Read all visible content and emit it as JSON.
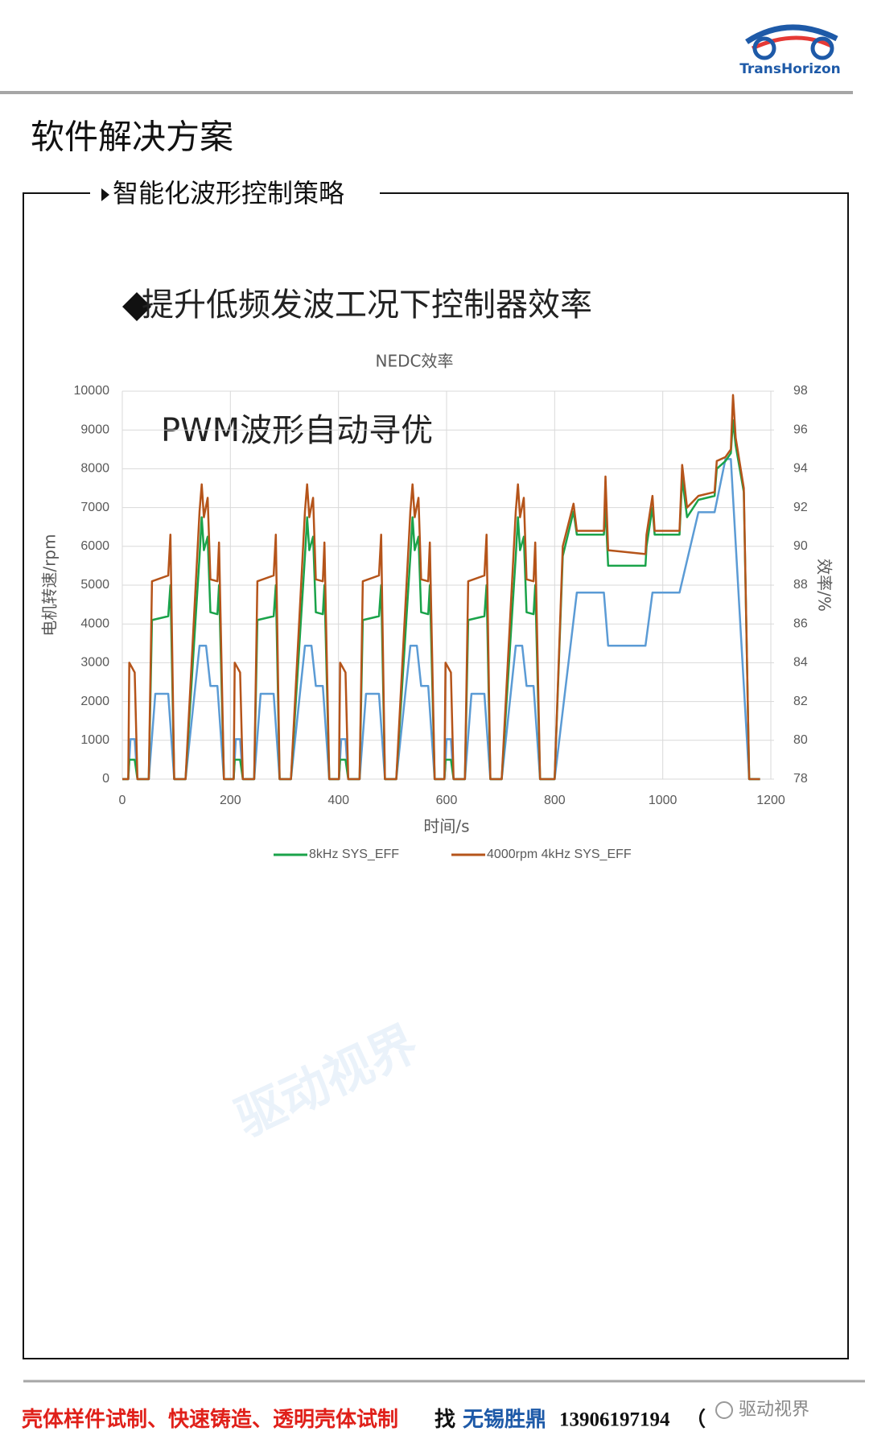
{
  "header": {
    "title": "软件解决方案",
    "logo": "TransHorizon",
    "section": "智能化波形控制策略",
    "heading": "提升低频发波工况下控制器效率"
  },
  "chart_data": {
    "type": "line",
    "title": "NEDC效率",
    "annotation": "PWM波形自动寻优",
    "x_label": "时间/s",
    "y_label": "电机转速/rpm",
    "y2_label": "效率/%",
    "xlim": [
      0,
      1200
    ],
    "xticks": [
      0,
      200,
      400,
      600,
      800,
      1000,
      1200
    ],
    "ylim": [
      0,
      10000
    ],
    "yticks": [
      0,
      1000,
      2000,
      3000,
      4000,
      5000,
      6000,
      7000,
      8000,
      9000,
      10000
    ],
    "y2lim": [
      78,
      98
    ],
    "y2ticks": [
      78,
      80,
      82,
      84,
      86,
      88,
      90,
      92,
      94,
      96,
      98
    ],
    "grid": true,
    "legend": "bottom",
    "series": [
      {
        "color": "#5b9bd5",
        "x": [
          0,
          11,
          15,
          23,
          28,
          49,
          61,
          85,
          96,
          117,
          143,
          155,
          163,
          176,
          188,
          195,
          206,
          210,
          218,
          223,
          244,
          256,
          280,
          291,
          312,
          338,
          350,
          358,
          371,
          383,
          390,
          401,
          405,
          413,
          418,
          439,
          451,
          475,
          486,
          507,
          533,
          545,
          553,
          566,
          578,
          585,
          596,
          600,
          608,
          613,
          634,
          646,
          670,
          681,
          702,
          728,
          740,
          748,
          761,
          773,
          780,
          800,
          841,
          891,
          899,
          968,
          981,
          1031,
          1066,
          1096,
          1116,
          1126,
          1160,
          1180
        ],
        "values": [
          0,
          0,
          1030,
          1030,
          0,
          0,
          2200,
          2200,
          0,
          0,
          3440,
          3440,
          2400,
          2400,
          0,
          0,
          0,
          1030,
          1030,
          0,
          0,
          2200,
          2200,
          0,
          0,
          3440,
          3440,
          2400,
          2400,
          0,
          0,
          0,
          1030,
          1030,
          0,
          0,
          2200,
          2200,
          0,
          0,
          3440,
          3440,
          2400,
          2400,
          0,
          0,
          0,
          1030,
          1030,
          0,
          0,
          2200,
          2200,
          0,
          0,
          3440,
          3440,
          2400,
          2400,
          0,
          0,
          0,
          4810,
          4810,
          3440,
          3440,
          4810,
          4810,
          6880,
          6880,
          8250,
          8250,
          0,
          0
        ]
      },
      {
        "name": "8kHz SYS_EFF",
        "color": "#1aa34a",
        "axis": "y2",
        "x": [
          0,
          11,
          13,
          23,
          28,
          49,
          55,
          85,
          89,
          96,
          117,
          143,
          147,
          151,
          158,
          163,
          176,
          179,
          188,
          195,
          206,
          208,
          218,
          223,
          244,
          250,
          280,
          284,
          291,
          312,
          338,
          342,
          346,
          353,
          358,
          371,
          374,
          383,
          390,
          401,
          403,
          413,
          418,
          439,
          445,
          475,
          479,
          486,
          507,
          533,
          537,
          541,
          548,
          553,
          566,
          569,
          578,
          585,
          596,
          598,
          608,
          613,
          634,
          640,
          670,
          674,
          681,
          702,
          728,
          732,
          736,
          743,
          748,
          761,
          764,
          773,
          780,
          800,
          815,
          835,
          841,
          891,
          894,
          899,
          968,
          970,
          981,
          985,
          1031,
          1036,
          1045,
          1066,
          1096,
          1100,
          1116,
          1126,
          1130,
          1135,
          1150,
          1160,
          1180
        ],
        "values": [
          78,
          78,
          79,
          79,
          78,
          78,
          86.2,
          86.4,
          88,
          78,
          78,
          89.5,
          91.5,
          89.8,
          90.5,
          86.6,
          86.5,
          88,
          78,
          78,
          78,
          79,
          79,
          78,
          78,
          86.2,
          86.4,
          88,
          78,
          78,
          89.5,
          91.5,
          89.8,
          90.5,
          86.6,
          86.5,
          88,
          78,
          78,
          78,
          79,
          79,
          78,
          78,
          86.2,
          86.4,
          88,
          78,
          78,
          89.5,
          91.5,
          89.8,
          90.5,
          86.6,
          86.5,
          88,
          78,
          78,
          78,
          79,
          79,
          78,
          78,
          86.2,
          86.4,
          88,
          78,
          78,
          89.5,
          91.5,
          89.8,
          90.5,
          86.6,
          86.5,
          88,
          78,
          78,
          78,
          89.5,
          91.8,
          90.6,
          90.6,
          92,
          89,
          89,
          90,
          92,
          90.6,
          90.6,
          93.5,
          91.5,
          92.4,
          92.6,
          94,
          94.4,
          94.8,
          96.5,
          95.2,
          92.8,
          78,
          78
        ]
      },
      {
        "name": "4000rpm 4kHz SYS_EFF",
        "color": "#b5541a",
        "axis": "y2",
        "x": [
          0,
          11,
          13,
          23,
          28,
          49,
          55,
          85,
          89,
          96,
          117,
          143,
          147,
          151,
          158,
          163,
          176,
          179,
          188,
          195,
          206,
          208,
          218,
          223,
          244,
          250,
          280,
          284,
          291,
          312,
          338,
          342,
          346,
          353,
          358,
          371,
          374,
          383,
          390,
          401,
          403,
          413,
          418,
          439,
          445,
          475,
          479,
          486,
          507,
          533,
          537,
          541,
          548,
          553,
          566,
          569,
          578,
          585,
          596,
          598,
          608,
          613,
          634,
          640,
          670,
          674,
          681,
          702,
          728,
          732,
          736,
          743,
          748,
          761,
          764,
          773,
          780,
          800,
          815,
          835,
          841,
          891,
          894,
          899,
          968,
          970,
          981,
          985,
          1031,
          1036,
          1045,
          1066,
          1096,
          1100,
          1116,
          1126,
          1130,
          1135,
          1150,
          1160,
          1180
        ],
        "values": [
          78,
          78,
          84,
          83.5,
          78,
          78,
          88.2,
          88.5,
          90.6,
          78,
          78,
          91.8,
          93.2,
          91.5,
          92.5,
          88.3,
          88.2,
          90.2,
          78,
          78,
          78,
          84,
          83.5,
          78,
          78,
          88.2,
          88.5,
          90.6,
          78,
          78,
          91.8,
          93.2,
          91.5,
          92.5,
          88.3,
          88.2,
          90.2,
          78,
          78,
          78,
          84,
          83.5,
          78,
          78,
          88.2,
          88.5,
          90.6,
          78,
          78,
          91.8,
          93.2,
          91.5,
          92.5,
          88.3,
          88.2,
          90.2,
          78,
          78,
          78,
          84,
          83.5,
          78,
          78,
          88.2,
          88.5,
          90.6,
          78,
          78,
          91.8,
          93.2,
          91.5,
          92.5,
          88.3,
          88.2,
          90.2,
          78,
          78,
          78,
          90,
          92.2,
          90.8,
          90.8,
          93.6,
          89.8,
          89.6,
          90.6,
          92.6,
          90.8,
          90.8,
          94.2,
          92,
          92.6,
          92.8,
          94.4,
          94.6,
          95,
          97.8,
          95.6,
          93,
          78,
          78
        ]
      }
    ]
  },
  "footer": {
    "ad": "壳体样件试制、快速铸造、透明壳体试制",
    "find": "找",
    "company": "无锡胜鼎",
    "phone": "13906197194",
    "paren": "（",
    "wechat": "驱动视界",
    "watermark": "驱动视界"
  }
}
